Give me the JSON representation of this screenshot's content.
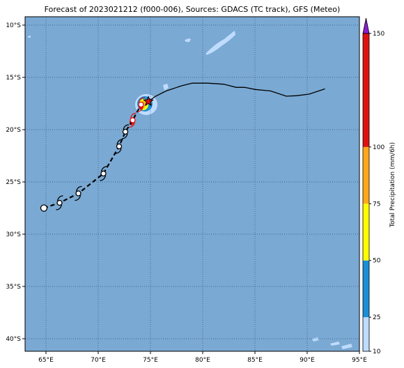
{
  "title": "Forecast of 2023021212 (f000-006), Sources: GDACS (TC track), GFS (Meteo)",
  "map": {
    "lon_range": [
      63,
      95
    ],
    "lat_range": [
      -41.2,
      -9.2
    ],
    "lon_ticks": [
      {
        "v": 65,
        "label": "65°E"
      },
      {
        "v": 70,
        "label": "70°E"
      },
      {
        "v": 75,
        "label": "75°E"
      },
      {
        "v": 80,
        "label": "80°E"
      },
      {
        "v": 85,
        "label": "85°E"
      },
      {
        "v": 90,
        "label": "90°E"
      },
      {
        "v": 95,
        "label": "95°E"
      }
    ],
    "lat_ticks": [
      {
        "v": -10,
        "label": "10°S"
      },
      {
        "v": -15,
        "label": "15°S"
      },
      {
        "v": -20,
        "label": "20°S"
      },
      {
        "v": -25,
        "label": "25°S"
      },
      {
        "v": -30,
        "label": "30°S"
      },
      {
        "v": -35,
        "label": "35°S"
      },
      {
        "v": -40,
        "label": "40°S"
      }
    ],
    "grid": "dotted",
    "ocean_color": "#7aa9d3",
    "past_track": [
      [
        64.8,
        -27.5
      ],
      [
        66.3,
        -27.0
      ],
      [
        68.1,
        -26.1
      ],
      [
        70.5,
        -24.2
      ],
      [
        72.0,
        -21.6
      ],
      [
        72.6,
        -20.2
      ],
      [
        73.3,
        -19.1
      ],
      [
        74.1,
        -17.6
      ]
    ],
    "forecast_track": [
      [
        74.8,
        -17.3
      ],
      [
        75.5,
        -16.8
      ],
      [
        76.5,
        -16.3
      ],
      [
        78.0,
        -15.8
      ],
      [
        79.0,
        -15.55
      ],
      [
        80.5,
        -15.55
      ],
      [
        82.0,
        -15.65
      ],
      [
        83.2,
        -15.95
      ],
      [
        84.0,
        -15.95
      ],
      [
        85.0,
        -16.15
      ],
      [
        86.5,
        -16.3
      ],
      [
        88.0,
        -16.8
      ],
      [
        89.0,
        -16.75
      ],
      [
        90.2,
        -16.6
      ],
      [
        91.7,
        -16.1
      ]
    ],
    "current_position": [
      74.8,
      -17.3
    ],
    "storm_symbols": [
      {
        "lon": 64.8,
        "lat": -27.5,
        "kind": "circle"
      },
      {
        "lon": 66.3,
        "lat": -27.0,
        "kind": "cyclone"
      },
      {
        "lon": 68.1,
        "lat": -26.1,
        "kind": "cyclone"
      },
      {
        "lon": 70.5,
        "lat": -24.2,
        "kind": "cyclone"
      },
      {
        "lon": 72.0,
        "lat": -21.6,
        "kind": "cyclone"
      },
      {
        "lon": 72.6,
        "lat": -20.2,
        "kind": "cyclone"
      },
      {
        "lon": 73.3,
        "lat": -19.1,
        "kind": "cyclone-red"
      },
      {
        "lon": 74.1,
        "lat": -17.6,
        "kind": "cyclone-red"
      }
    ]
  },
  "colorbar": {
    "label": "Total Precipitation (mm/6h)",
    "bins": [
      {
        "from": 10,
        "to": 25,
        "color": "#bfdcff"
      },
      {
        "from": 25,
        "to": 50,
        "color": "#1a8fd8"
      },
      {
        "from": 50,
        "to": 75,
        "color": "#ffff00"
      },
      {
        "from": 75,
        "to": 100,
        "color": "#ffa81a"
      },
      {
        "from": 100,
        "to": 150,
        "color": "#e01010"
      }
    ],
    "extend_color": "#8a1ed0",
    "ticks": [
      {
        "v": 10,
        "label": "10"
      },
      {
        "v": 25,
        "label": "25"
      },
      {
        "v": 50,
        "label": "50"
      },
      {
        "v": 75,
        "label": "75"
      },
      {
        "v": 100,
        "label": "100"
      },
      {
        "v": 150,
        "label": "150"
      }
    ]
  }
}
